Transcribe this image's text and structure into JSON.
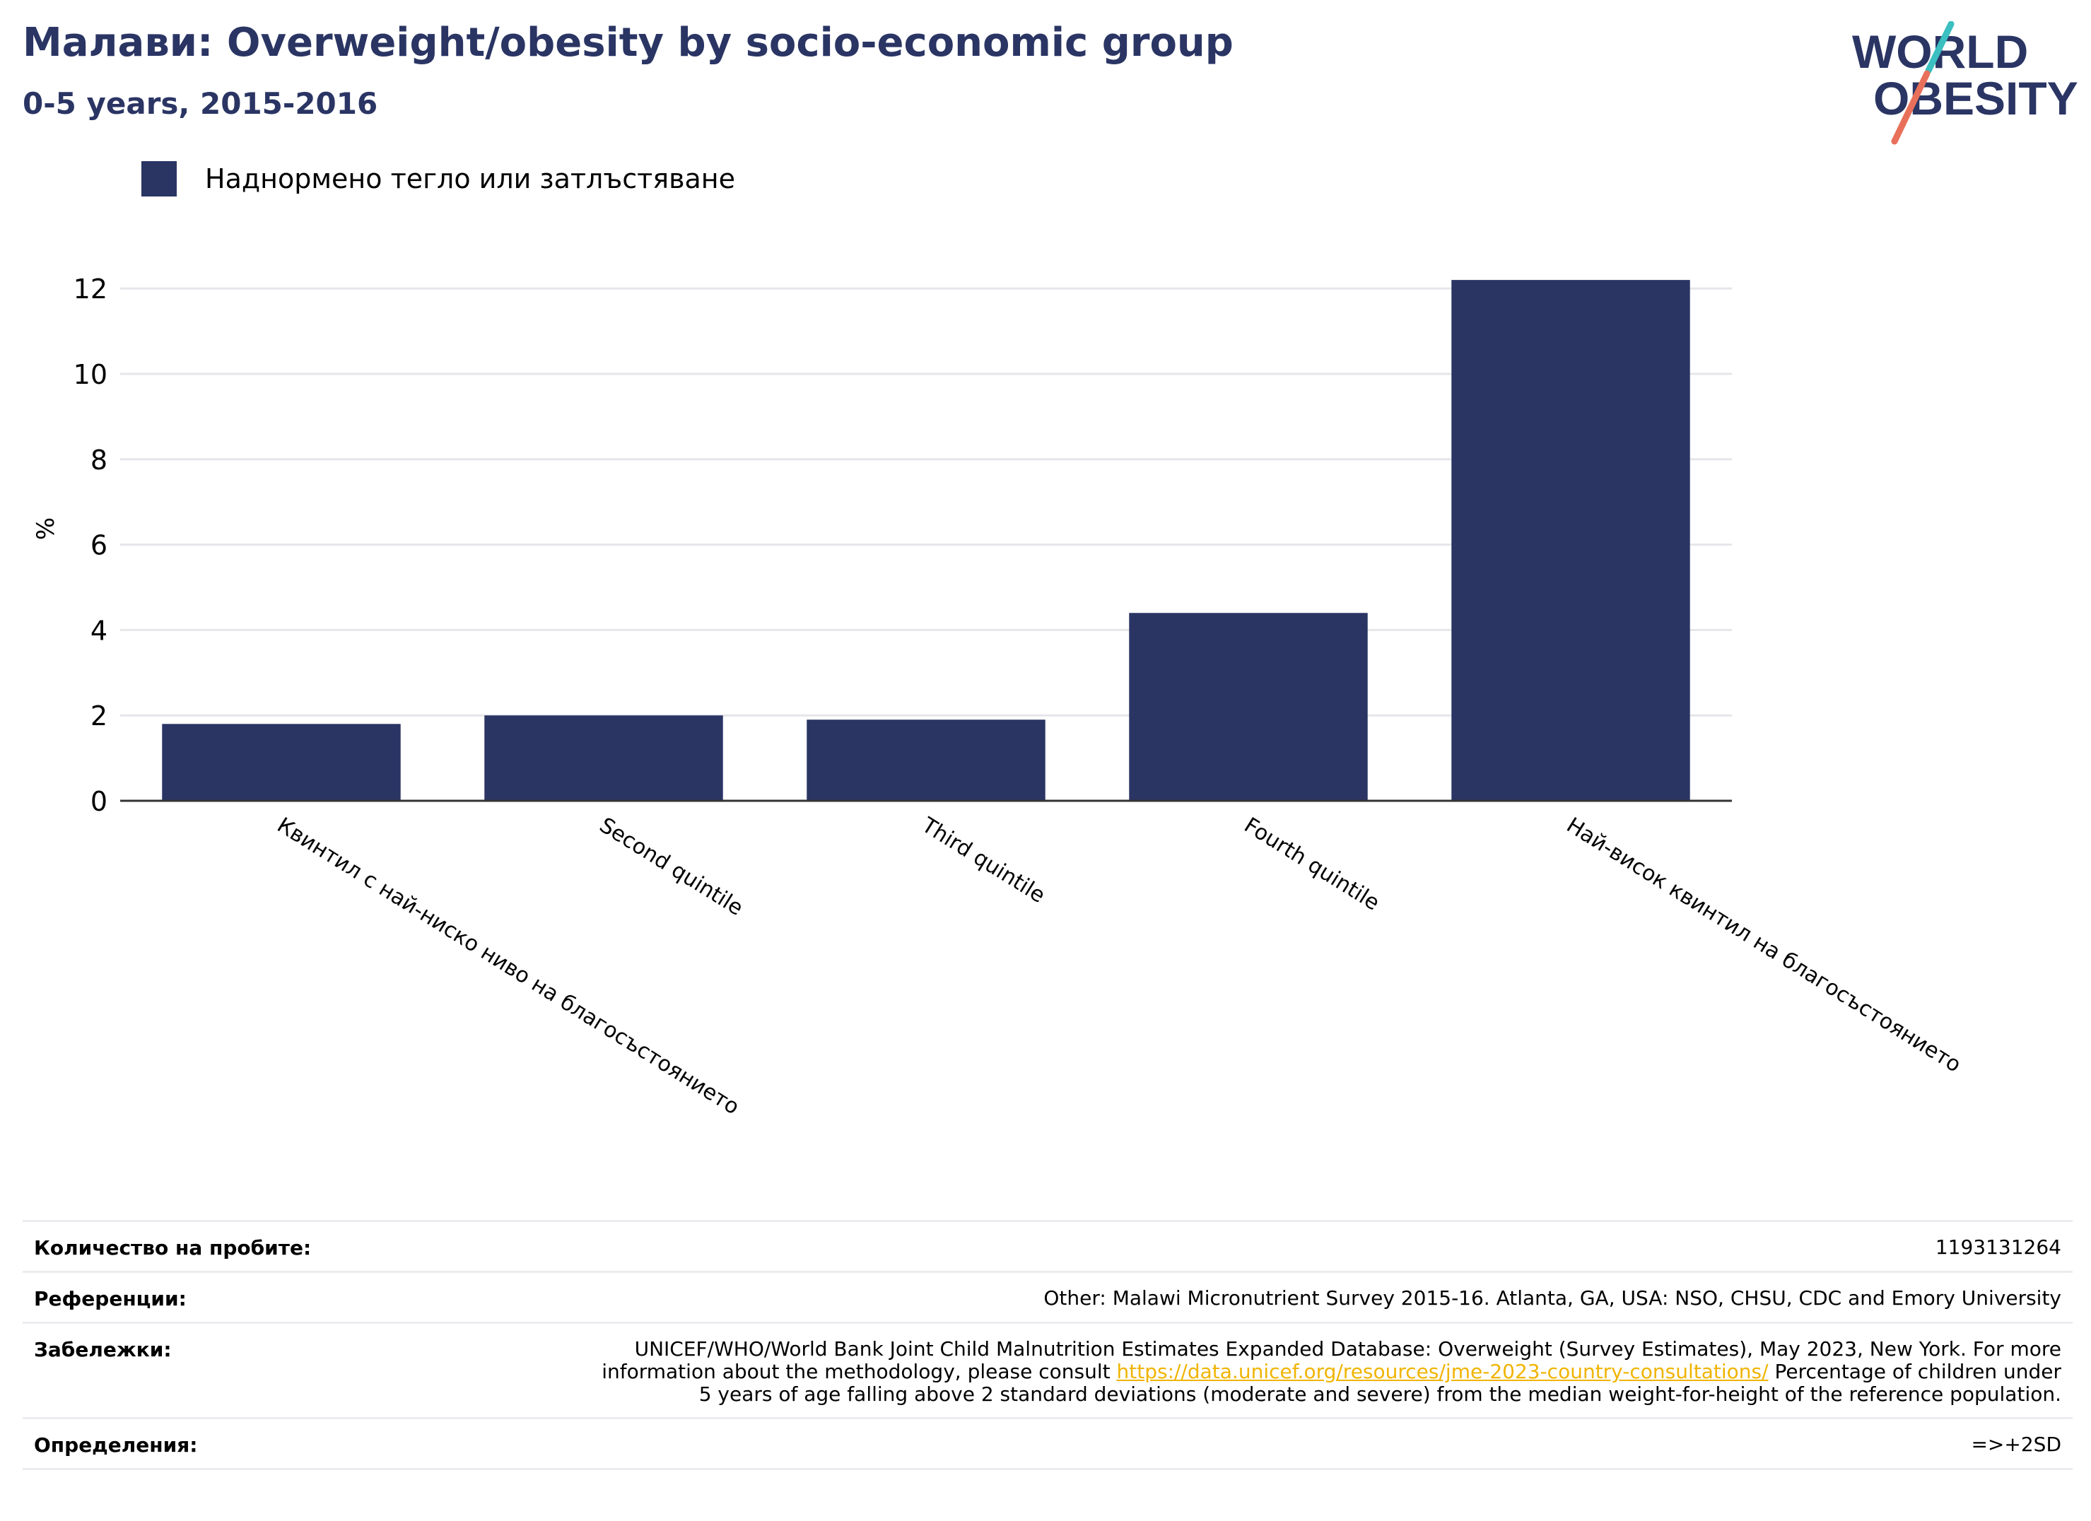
{
  "title": "Малави: Overweight/obesity by socio-economic group",
  "subtitle": "0-5 years, 2015-2016",
  "logo": {
    "line1": "WORLD",
    "line2": "OBESITY"
  },
  "colors": {
    "bar": "#2a3564",
    "title": "#2a3564",
    "logo_accent_red": "#e8705a",
    "logo_accent_teal": "#3bbfc0"
  },
  "chart_data": {
    "type": "bar",
    "categories": [
      "Квинтил с най-ниско ниво на благосъстоянието",
      "Second quintile",
      "Third quintile",
      "Fourth quintile",
      "Най-висок квинтил на благосъстоянието"
    ],
    "series": [
      {
        "name": "Наднормено тегло или затлъстяване",
        "values": [
          1.8,
          2.0,
          1.9,
          4.4,
          12.2
        ]
      }
    ],
    "ylabel": "%",
    "ylim": [
      0,
      12.5
    ],
    "yticks": [
      0,
      2,
      4,
      6,
      8,
      10,
      12
    ],
    "grid": true,
    "legend_position": "top-left"
  },
  "info": {
    "samples_label": "Количество на пробите:",
    "samples_value": "1193131264",
    "references_label": "Референции:",
    "references_value": "Other: Malawi Micronutrient Survey 2015-16. Atlanta, GA, USA: NSO, CHSU, CDC and Emory University",
    "notes_label": "Забележки:",
    "notes_before": "UNICEF/WHO/World Bank Joint Child Malnutrition Estimates Expanded Database: Overweight (Survey Estimates), May 2023, New York. For more information about the methodology, please consult ",
    "notes_link": "https://data.unicef.org/resources/jme-2023-country-consultations/",
    "notes_after": " Percentage of children under 5 years of age falling above 2 standard deviations (moderate and severe) from the median weight-for-height of the reference population.",
    "definitions_label": "Определения:",
    "definitions_value": "=>+2SD"
  }
}
